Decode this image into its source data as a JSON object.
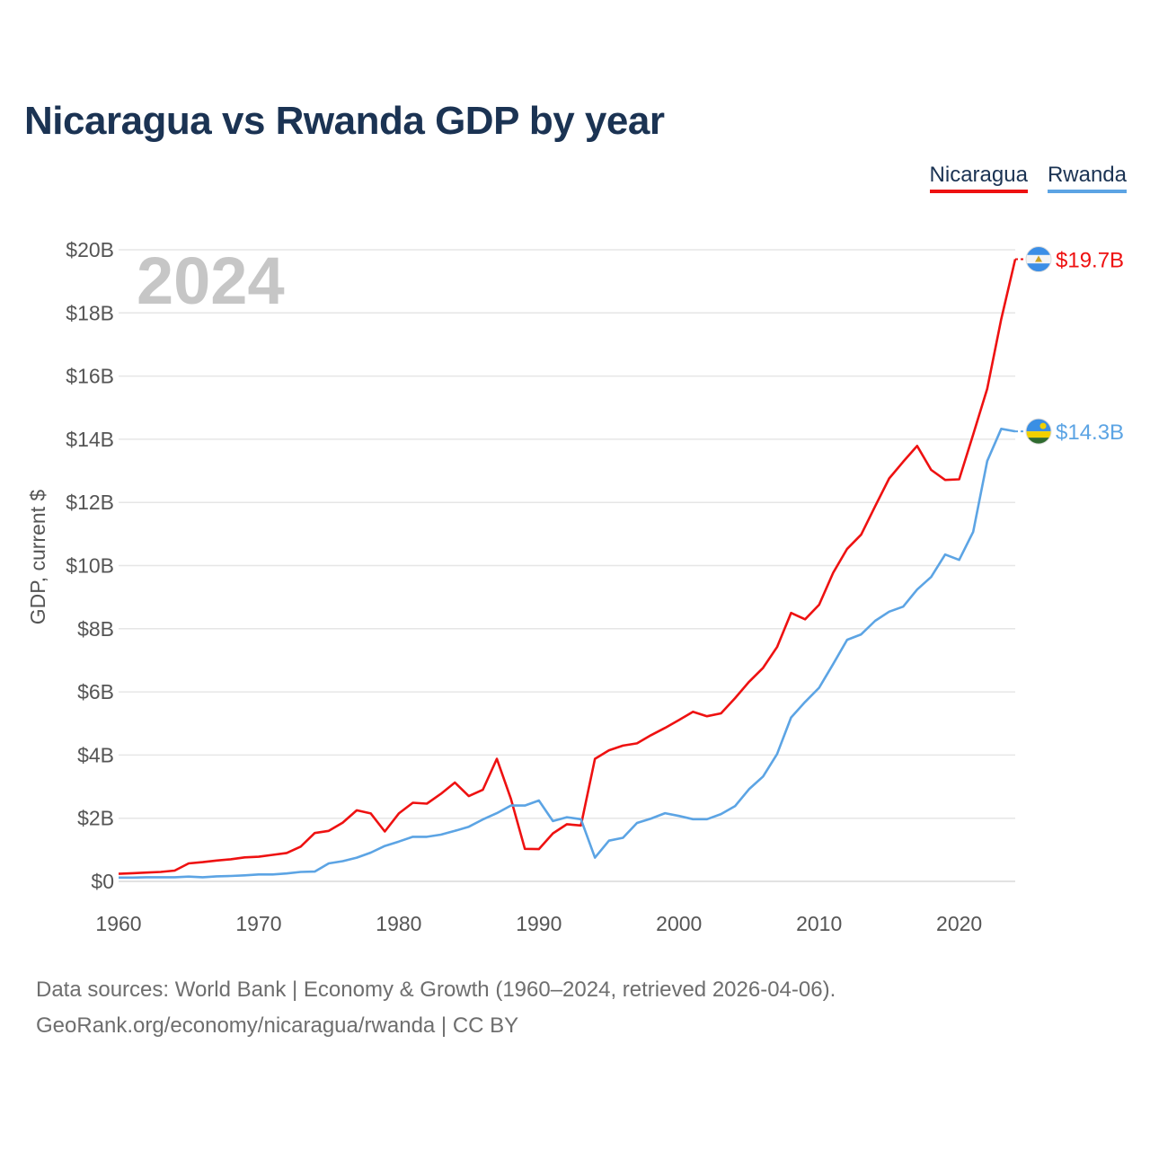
{
  "chart_data": {
    "type": "line",
    "title": "Nicaragua vs Rwanda GDP by year",
    "ylabel": "GDP, current $",
    "xlabel": "",
    "current_year": "2024",
    "ylim": [
      0,
      20
    ],
    "xlim": [
      1960,
      2024
    ],
    "y_ticks": [
      0,
      2,
      4,
      6,
      8,
      10,
      12,
      14,
      16,
      18,
      20
    ],
    "y_tick_labels": [
      "$0",
      "$2B",
      "$4B",
      "$6B",
      "$8B",
      "$10B",
      "$12B",
      "$14B",
      "$16B",
      "$18B",
      "$20B"
    ],
    "x_ticks": [
      1960,
      1970,
      1980,
      1990,
      2000,
      2010,
      2020
    ],
    "x_tick_labels": [
      "1960",
      "1970",
      "1980",
      "1990",
      "2000",
      "2010",
      "2020"
    ],
    "x": [
      1960,
      1961,
      1962,
      1963,
      1964,
      1965,
      1966,
      1967,
      1968,
      1969,
      1970,
      1971,
      1972,
      1973,
      1974,
      1975,
      1976,
      1977,
      1978,
      1979,
      1980,
      1981,
      1982,
      1983,
      1984,
      1985,
      1986,
      1987,
      1988,
      1989,
      1990,
      1991,
      1992,
      1993,
      1994,
      1995,
      1996,
      1997,
      1998,
      1999,
      2000,
      2001,
      2002,
      2003,
      2004,
      2005,
      2006,
      2007,
      2008,
      2009,
      2010,
      2011,
      2012,
      2013,
      2014,
      2015,
      2016,
      2017,
      2018,
      2019,
      2020,
      2021,
      2022,
      2023,
      2024
    ],
    "series": [
      {
        "name": "Nicaragua",
        "color": "#ee1111",
        "end_label": "$19.7B",
        "values": [
          0.24,
          0.26,
          0.28,
          0.3,
          0.34,
          0.57,
          0.61,
          0.66,
          0.7,
          0.76,
          0.78,
          0.84,
          0.9,
          1.1,
          1.53,
          1.6,
          1.86,
          2.25,
          2.15,
          1.58,
          2.15,
          2.49,
          2.46,
          2.77,
          3.13,
          2.7,
          2.9,
          3.88,
          2.62,
          1.03,
          1.02,
          1.52,
          1.81,
          1.77,
          3.88,
          4.15,
          4.3,
          4.37,
          4.63,
          4.86,
          5.11,
          5.37,
          5.23,
          5.32,
          5.8,
          6.32,
          6.76,
          7.42,
          8.5,
          8.3,
          8.76,
          9.77,
          10.53,
          10.98,
          11.88,
          12.76,
          13.29,
          13.79,
          13.03,
          12.71,
          12.73,
          14.15,
          15.6,
          17.8,
          19.7
        ]
      },
      {
        "name": "Rwanda",
        "color": "#5ca4e4",
        "end_label": "$14.3B",
        "values": [
          0.12,
          0.12,
          0.13,
          0.13,
          0.13,
          0.15,
          0.13,
          0.16,
          0.17,
          0.19,
          0.22,
          0.22,
          0.25,
          0.3,
          0.31,
          0.57,
          0.64,
          0.75,
          0.91,
          1.12,
          1.26,
          1.41,
          1.41,
          1.48,
          1.6,
          1.73,
          1.96,
          2.16,
          2.4,
          2.4,
          2.56,
          1.91,
          2.03,
          1.97,
          0.75,
          1.29,
          1.38,
          1.85,
          1.99,
          2.16,
          2.07,
          1.97,
          1.97,
          2.13,
          2.38,
          2.92,
          3.32,
          4.03,
          5.19,
          5.68,
          6.13,
          6.88,
          7.65,
          7.82,
          8.25,
          8.54,
          8.7,
          9.24,
          9.64,
          10.35,
          10.18,
          11.07,
          13.31,
          14.33,
          14.25
        ]
      }
    ]
  },
  "legend": {
    "items": [
      {
        "label": "Nicaragua",
        "color": "#ee1111"
      },
      {
        "label": "Rwanda",
        "color": "#5ca4e4"
      }
    ]
  },
  "footer": {
    "line1": "Data sources: World Bank | Economy & Growth (1960–2024, retrieved 2026-04-06).",
    "line2": "GeoRank.org/economy/nicaragua/rwanda | CC BY"
  },
  "icons": {
    "nicaragua_flag": "nicaragua-flag-icon",
    "rwanda_flag": "rwanda-flag-icon"
  }
}
